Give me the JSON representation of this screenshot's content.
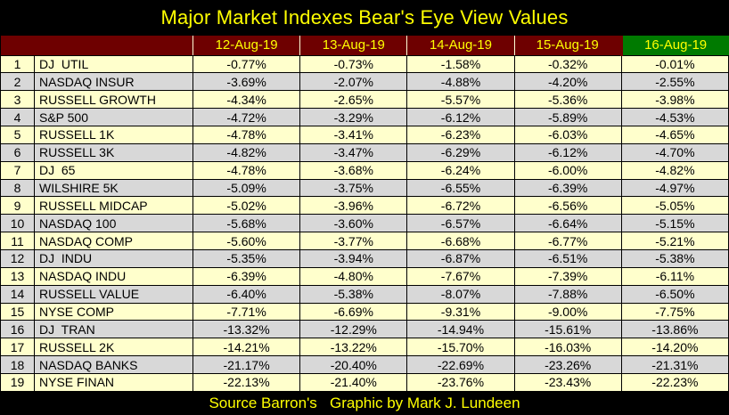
{
  "colors": {
    "background": "#000000",
    "title_text": "#FFFF00",
    "header_background": "#6E0000",
    "header_highlight_background": "#007A00",
    "header_divider": "#FFFFD8",
    "header_text": "#FFFF00",
    "row_odd_background": "#FFFFCC",
    "row_even_background": "#D8D8D8",
    "cell_text": "#000000",
    "grid_border": "#000000"
  },
  "chart_data": {
    "type": "table",
    "title": "Major Market Indexes Bear's Eye View Values",
    "date_columns": [
      "12-Aug-19",
      "13-Aug-19",
      "14-Aug-19",
      "15-Aug-19",
      "16-Aug-19"
    ],
    "highlighted_column": "16-Aug-19",
    "rows": [
      {
        "rank": "1",
        "name": "DJ  UTIL",
        "values": [
          "-0.77%",
          "-0.73%",
          "-1.58%",
          "-0.32%",
          "-0.01%"
        ]
      },
      {
        "rank": "2",
        "name": "NASDAQ INSUR",
        "values": [
          "-3.69%",
          "-2.07%",
          "-4.88%",
          "-4.20%",
          "-2.55%"
        ]
      },
      {
        "rank": "3",
        "name": "RUSSELL GROWTH",
        "values": [
          "-4.34%",
          "-2.65%",
          "-5.57%",
          "-5.36%",
          "-3.98%"
        ]
      },
      {
        "rank": "4",
        "name": "S&P 500",
        "values": [
          "-4.72%",
          "-3.29%",
          "-6.12%",
          "-5.89%",
          "-4.53%"
        ]
      },
      {
        "rank": "5",
        "name": "RUSSELL 1K",
        "values": [
          "-4.78%",
          "-3.41%",
          "-6.23%",
          "-6.03%",
          "-4.65%"
        ]
      },
      {
        "rank": "6",
        "name": "RUSSELL 3K",
        "values": [
          "-4.82%",
          "-3.47%",
          "-6.29%",
          "-6.12%",
          "-4.70%"
        ]
      },
      {
        "rank": "7",
        "name": "DJ  65",
        "values": [
          "-4.78%",
          "-3.68%",
          "-6.24%",
          "-6.00%",
          "-4.82%"
        ]
      },
      {
        "rank": "8",
        "name": "WILSHIRE 5K",
        "values": [
          "-5.09%",
          "-3.75%",
          "-6.55%",
          "-6.39%",
          "-4.97%"
        ]
      },
      {
        "rank": "9",
        "name": "RUSSELL MIDCAP",
        "values": [
          "-5.02%",
          "-3.96%",
          "-6.72%",
          "-6.56%",
          "-5.05%"
        ]
      },
      {
        "rank": "10",
        "name": "NASDAQ 100",
        "values": [
          "-5.68%",
          "-3.60%",
          "-6.57%",
          "-6.64%",
          "-5.15%"
        ]
      },
      {
        "rank": "11",
        "name": "NASDAQ COMP",
        "values": [
          "-5.60%",
          "-3.77%",
          "-6.68%",
          "-6.77%",
          "-5.21%"
        ]
      },
      {
        "rank": "12",
        "name": "DJ  INDU",
        "values": [
          "-5.35%",
          "-3.94%",
          "-6.87%",
          "-6.51%",
          "-5.38%"
        ]
      },
      {
        "rank": "13",
        "name": "NASDAQ INDU",
        "values": [
          "-6.39%",
          "-4.80%",
          "-7.67%",
          "-7.39%",
          "-6.11%"
        ]
      },
      {
        "rank": "14",
        "name": "RUSSELL VALUE",
        "values": [
          "-6.40%",
          "-5.38%",
          "-8.07%",
          "-7.88%",
          "-6.50%"
        ]
      },
      {
        "rank": "15",
        "name": "NYSE COMP",
        "values": [
          "-7.71%",
          "-6.69%",
          "-9.31%",
          "-9.00%",
          "-7.75%"
        ]
      },
      {
        "rank": "16",
        "name": "DJ  TRAN",
        "values": [
          "-13.32%",
          "-12.29%",
          "-14.94%",
          "-15.61%",
          "-13.86%"
        ]
      },
      {
        "rank": "17",
        "name": "RUSSELL 2K",
        "values": [
          "-14.21%",
          "-13.22%",
          "-15.70%",
          "-16.03%",
          "-14.20%"
        ]
      },
      {
        "rank": "18",
        "name": "NASDAQ BANKS",
        "values": [
          "-21.17%",
          "-20.40%",
          "-22.69%",
          "-23.26%",
          "-21.31%"
        ]
      },
      {
        "rank": "19",
        "name": "NYSE FINAN",
        "values": [
          "-22.13%",
          "-21.40%",
          "-23.76%",
          "-23.43%",
          "-22.23%"
        ]
      }
    ],
    "source_note": "Source Barron's   Graphic by Mark J. Lundeen"
  }
}
